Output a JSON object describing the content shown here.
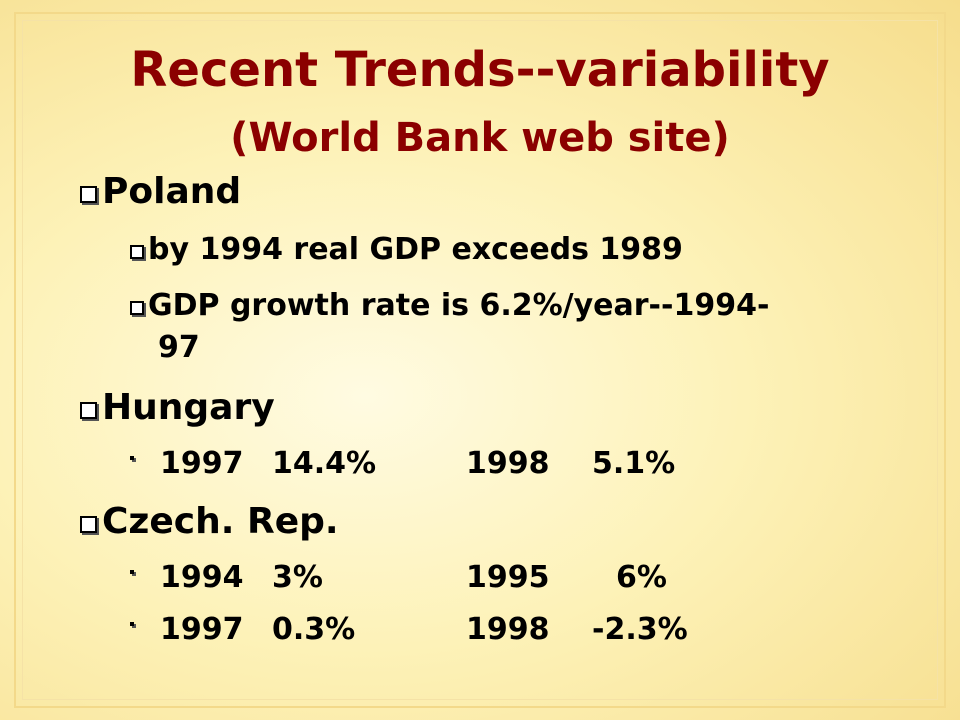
{
  "slide": {
    "title": "Recent Trends--variability",
    "subtitle": "(World Bank web site)"
  },
  "bullets": {
    "poland": {
      "label": "Poland",
      "sub1": "by 1994 real GDP exceeds 1989",
      "sub2_line1": "GDP growth rate is 6.2%/year--1994-",
      "sub2_line2": "97"
    },
    "hungary": {
      "label": "Hungary",
      "row1": {
        "year1": "1997",
        "val1": "14.4%",
        "year2": "1998",
        "val2": "5.1%"
      }
    },
    "czech": {
      "label": "Czech. Rep.",
      "row1": {
        "year1": "1994",
        "val1": "3%",
        "year2": "1995",
        "val2": "6%"
      },
      "row2": {
        "year1": "1997",
        "val1": "0.3%",
        "year2": "1998",
        "val2": "-2.3%"
      }
    }
  },
  "icons": {
    "bullet": "checkbox-bullet-icon"
  },
  "colors": {
    "title": "#8b0000",
    "text": "#000000",
    "background": "#fdf2b8",
    "frame": "#f3d98a"
  }
}
